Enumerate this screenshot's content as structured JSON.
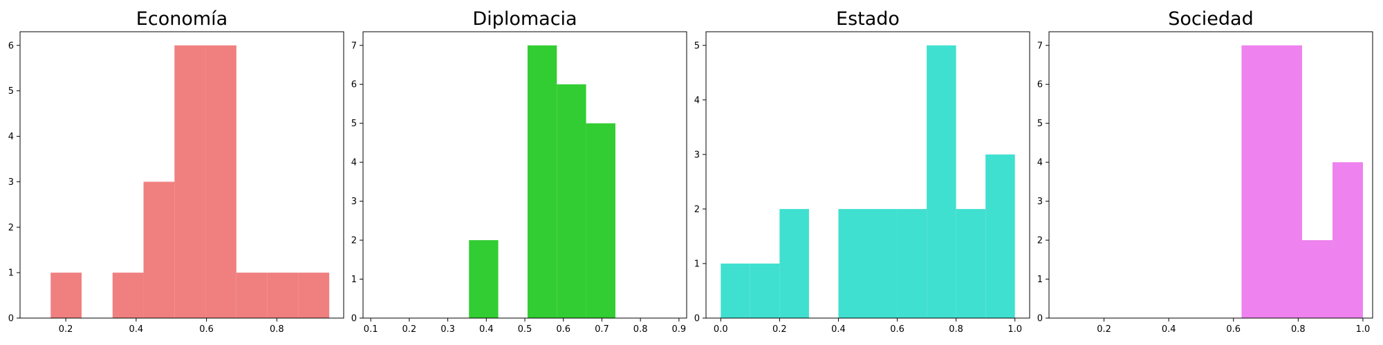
{
  "chart_data": [
    {
      "type": "histogram",
      "title": "Economía",
      "color": "#f08080",
      "xlim": [
        0.07,
        0.99
      ],
      "ylim": [
        0,
        6.3
      ],
      "xticks": [
        0.2,
        0.4,
        0.6,
        0.8
      ],
      "yticks": [
        0,
        1,
        2,
        3,
        4,
        5,
        6
      ],
      "bins": [
        {
          "x0": 0.157,
          "x1": 0.245,
          "count": 1
        },
        {
          "x0": 0.245,
          "x1": 0.333,
          "count": 0
        },
        {
          "x0": 0.333,
          "x1": 0.421,
          "count": 1
        },
        {
          "x0": 0.421,
          "x1": 0.509,
          "count": 3
        },
        {
          "x0": 0.509,
          "x1": 0.597,
          "count": 6
        },
        {
          "x0": 0.597,
          "x1": 0.685,
          "count": 6
        },
        {
          "x0": 0.685,
          "x1": 0.773,
          "count": 1
        },
        {
          "x0": 0.773,
          "x1": 0.861,
          "count": 1
        },
        {
          "x0": 0.861,
          "x1": 0.949,
          "count": 1
        }
      ]
    },
    {
      "type": "histogram",
      "title": "Diplomacia",
      "color": "#32cd32",
      "xlim": [
        0.08,
        0.92
      ],
      "ylim": [
        0,
        7.35
      ],
      "xticks": [
        0.1,
        0.2,
        0.3,
        0.4,
        0.5,
        0.6,
        0.7,
        0.8,
        0.9
      ],
      "yticks": [
        0,
        1,
        2,
        3,
        4,
        5,
        6,
        7
      ],
      "bins": [
        {
          "x0": 0.355,
          "x1": 0.431,
          "count": 2
        },
        {
          "x0": 0.431,
          "x1": 0.507,
          "count": 0
        },
        {
          "x0": 0.507,
          "x1": 0.583,
          "count": 7
        },
        {
          "x0": 0.583,
          "x1": 0.659,
          "count": 6
        },
        {
          "x0": 0.659,
          "x1": 0.735,
          "count": 5
        }
      ]
    },
    {
      "type": "histogram",
      "title": "Estado",
      "color": "#40e0d0",
      "xlim": [
        -0.05,
        1.05
      ],
      "ylim": [
        0,
        5.25
      ],
      "xticks": [
        0.0,
        0.2,
        0.4,
        0.6,
        0.8,
        1.0
      ],
      "yticks": [
        0,
        1,
        2,
        3,
        4,
        5
      ],
      "bins": [
        {
          "x0": 0.0,
          "x1": 0.1,
          "count": 1
        },
        {
          "x0": 0.1,
          "x1": 0.2,
          "count": 1
        },
        {
          "x0": 0.2,
          "x1": 0.3,
          "count": 2
        },
        {
          "x0": 0.3,
          "x1": 0.4,
          "count": 0
        },
        {
          "x0": 0.4,
          "x1": 0.5,
          "count": 2
        },
        {
          "x0": 0.5,
          "x1": 0.6,
          "count": 2
        },
        {
          "x0": 0.6,
          "x1": 0.7,
          "count": 2
        },
        {
          "x0": 0.7,
          "x1": 0.8,
          "count": 5
        },
        {
          "x0": 0.8,
          "x1": 0.9,
          "count": 2
        },
        {
          "x0": 0.9,
          "x1": 1.0,
          "count": 3
        }
      ]
    },
    {
      "type": "histogram",
      "title": "Sociedad",
      "color": "#ee82ee",
      "xlim": [
        0.03,
        1.03
      ],
      "ylim": [
        0,
        7.35
      ],
      "xticks": [
        0.2,
        0.4,
        0.6,
        0.8,
        1.0
      ],
      "yticks": [
        0,
        1,
        2,
        3,
        4,
        5,
        6,
        7
      ],
      "bins": [
        {
          "x0": 0.625,
          "x1": 0.719,
          "count": 7
        },
        {
          "x0": 0.719,
          "x1": 0.812,
          "count": 7
        },
        {
          "x0": 0.812,
          "x1": 0.906,
          "count": 2
        },
        {
          "x0": 0.906,
          "x1": 1.0,
          "count": 4
        }
      ]
    }
  ]
}
